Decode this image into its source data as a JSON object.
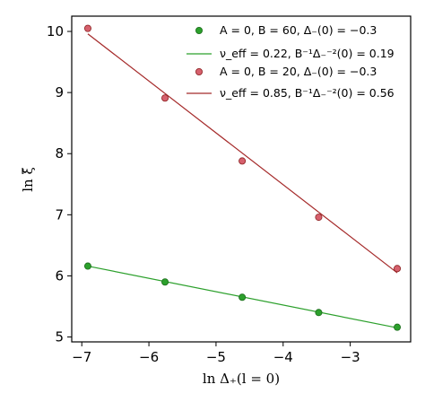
{
  "chart_data": {
    "type": "scatter",
    "title": "",
    "xlabel": "ln Δ₊(l = 0)",
    "ylabel": "ln ξ̃",
    "xlim": [
      -7.15,
      -2.1
    ],
    "ylim": [
      4.92,
      10.25
    ],
    "xticks": [
      -7,
      -6,
      -5,
      -4,
      -3
    ],
    "xtick_labels": [
      "−7",
      "−6",
      "−5",
      "−4",
      "−3"
    ],
    "yticks": [
      5,
      6,
      7,
      8,
      9,
      10
    ],
    "ytick_labels": [
      "5",
      "6",
      "7",
      "8",
      "9",
      "10"
    ],
    "grid": false,
    "legend_position": "top-right",
    "series": [
      {
        "name": "A = 0, B = 60, Δ₋(0) = −0.3",
        "kind": "scatter",
        "color": "#2ca02c",
        "x": [
          -6.91,
          -5.76,
          -4.61,
          -3.47,
          -2.3
        ],
        "y": [
          6.16,
          5.9,
          5.65,
          5.4,
          5.16
        ]
      },
      {
        "name": "ν_eff = 0.22,  B⁻¹Δ₋⁻²(0) = 0.19",
        "kind": "line",
        "color": "#2ca02c",
        "x": [
          -6.91,
          -2.3
        ],
        "y": [
          6.16,
          5.15
        ]
      },
      {
        "name": "A = 0, B = 20, Δ₋(0) = −0.3",
        "kind": "scatter",
        "color": "#d62728",
        "x": [
          -6.91,
          -5.76,
          -4.61,
          -3.47,
          -2.3
        ],
        "y": [
          10.05,
          8.91,
          7.88,
          6.96,
          6.12
        ]
      },
      {
        "name": "ν_eff = 0.85,  B⁻¹Δ₋⁻²(0) = 0.56",
        "kind": "line",
        "color": "#a52a2a",
        "x": [
          -6.91,
          -2.3
        ],
        "y": [
          9.96,
          6.05
        ]
      }
    ]
  }
}
